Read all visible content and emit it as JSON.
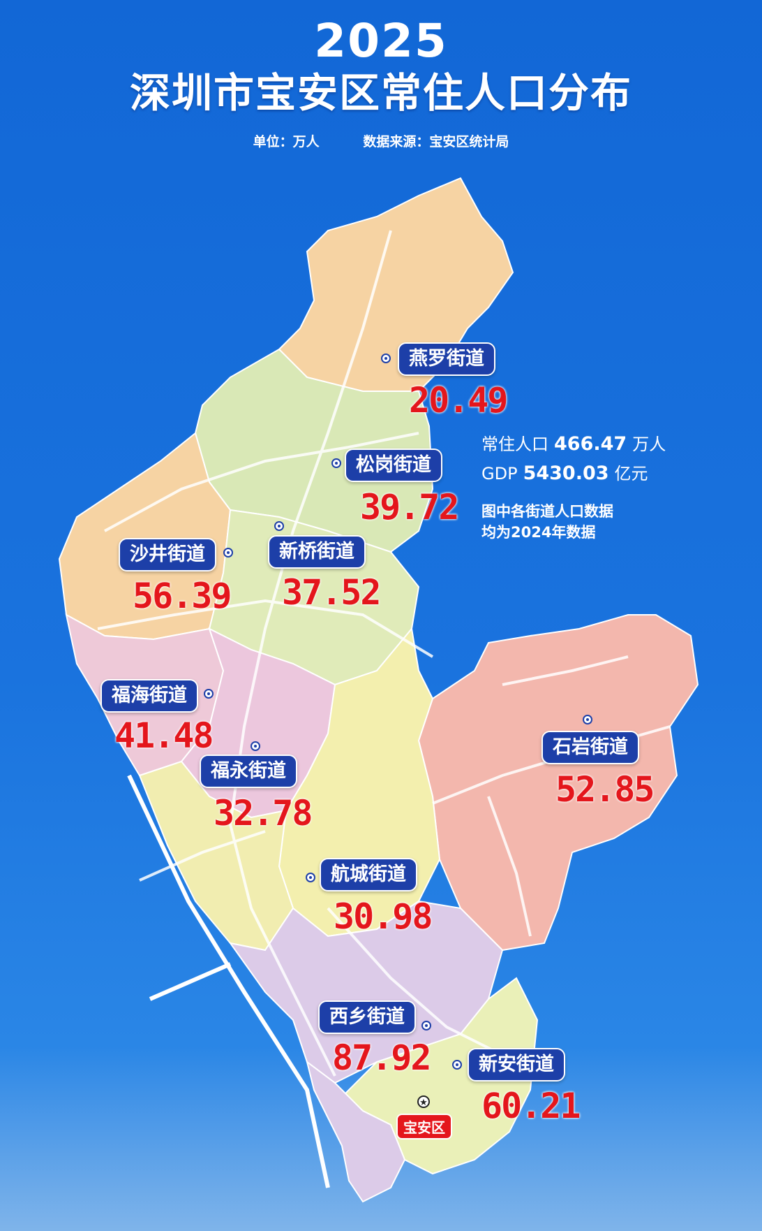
{
  "title": {
    "year": "2025",
    "main": "深圳市宝安区常住人口分布"
  },
  "meta": {
    "unit": "单位：万人",
    "source": "数据来源：宝安区统计局"
  },
  "summary": {
    "population_label": "常住人口",
    "population_value": "466.47",
    "population_unit": "万人",
    "gdp_label": "GDP",
    "gdp_value": "5430.03",
    "gdp_unit": "亿元",
    "note_line1": "图中各街道人口数据",
    "note_line2": "均为2024年数据"
  },
  "districts": [
    {
      "name": "燕罗街道",
      "value": "20.49"
    },
    {
      "name": "松岗街道",
      "value": "39.72"
    },
    {
      "name": "沙井街道",
      "value": "56.39"
    },
    {
      "name": "新桥街道",
      "value": "37.52"
    },
    {
      "name": "福海街道",
      "value": "41.48"
    },
    {
      "name": "福永街道",
      "value": "32.78"
    },
    {
      "name": "石岩街道",
      "value": "52.85"
    },
    {
      "name": "航城街道",
      "value": "30.98"
    },
    {
      "name": "西乡街道",
      "value": "87.92"
    },
    {
      "name": "新安街道",
      "value": "60.21"
    }
  ],
  "center_label": "宝安区",
  "colors": {
    "background": "#1a73de",
    "label_bg": "#1d3fa8",
    "value_text": "#e4161c",
    "region_orange": "#f6d3a3",
    "region_green": "#d9e8b6",
    "region_pink": "#eec9d8",
    "region_yellow": "#f3efae",
    "region_salmon": "#f3b7ad",
    "region_lilac": "#dccbe8"
  }
}
